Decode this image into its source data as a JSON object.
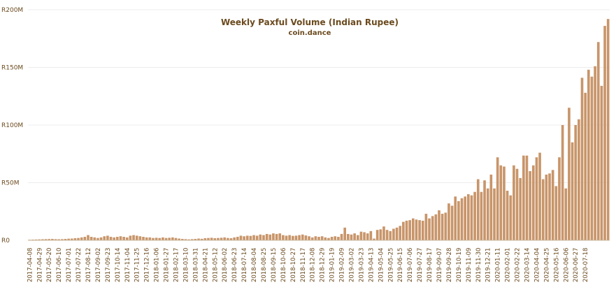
{
  "chart_data": {
    "type": "bar",
    "title": "Weekly Paxful Volume (Indian Rupee)",
    "subtitle": "coin.dance",
    "xlabel": "",
    "ylabel": "",
    "ylim": [
      0,
      200000000
    ],
    "y_ticks": [
      {
        "value": 0,
        "label": "R0"
      },
      {
        "value": 50000000,
        "label": "R50M"
      },
      {
        "value": 100000000,
        "label": "R100M"
      },
      {
        "value": 150000000,
        "label": "R150M"
      },
      {
        "value": 200000000,
        "label": "R200M"
      }
    ],
    "x_tick_labels": [
      "2017-04-08",
      "2017-04-29",
      "2017-05-20",
      "2017-06-10",
      "2017-07-01",
      "2017-07-22",
      "2017-08-12",
      "2017-09-02",
      "2017-09-23",
      "2017-10-14",
      "2017-11-04",
      "2017-11-25",
      "2017-12-16",
      "2018-01-06",
      "2018-01-27",
      "2018-02-17",
      "2018-03-10",
      "2018-03-31",
      "2018-04-21",
      "2018-05-12",
      "2018-06-02",
      "2018-06-23",
      "2018-07-14",
      "2018-08-04",
      "2018-08-25",
      "2018-09-15",
      "2018-10-06",
      "2018-10-27",
      "2018-11-17",
      "2018-12-08",
      "2018-12-29",
      "2019-01-19",
      "2019-02-09",
      "2019-03-02",
      "2019-03-23",
      "2019-04-13",
      "2019-05-04",
      "2019-05-25",
      "2019-06-15",
      "2019-07-06",
      "2019-07-27",
      "2019-08-17",
      "2019-09-07",
      "2019-09-28",
      "2019-10-19",
      "2019-11-09",
      "2019-11-30",
      "2019-12-21",
      "2020-01-11",
      "2020-02-01",
      "2020-02-22",
      "2020-03-14",
      "2020-04-04",
      "2020-04-25",
      "2020-05-16",
      "2020-06-06",
      "2020-06-27",
      "2020-07-18"
    ],
    "grid": true,
    "legend": "none",
    "bar_color": "#c8956a",
    "values_millions": [
      0.5,
      0.6,
      0.7,
      0.8,
      0.9,
      1.0,
      1.1,
      1.2,
      1.0,
      0.9,
      1.0,
      1.2,
      1.4,
      1.5,
      1.8,
      2.0,
      2.5,
      3.0,
      4.5,
      3.0,
      2.5,
      2.0,
      2.5,
      3.5,
      4.0,
      3.0,
      2.5,
      3.0,
      3.5,
      3.0,
      2.5,
      4.0,
      4.5,
      4.0,
      3.5,
      3.0,
      2.5,
      2.5,
      2.0,
      2.2,
      2.0,
      2.5,
      2.0,
      2.2,
      2.5,
      2.0,
      1.5,
      1.2,
      1.0,
      0.8,
      1.0,
      1.2,
      1.5,
      1.3,
      1.8,
      2.0,
      2.2,
      1.8,
      2.0,
      2.2,
      2.5,
      2.0,
      1.8,
      2.5,
      3.0,
      4.0,
      3.5,
      4.0,
      3.8,
      4.5,
      4.0,
      5.0,
      4.5,
      5.5,
      5.0,
      6.0,
      5.5,
      6.0,
      4.5,
      4.0,
      4.5,
      3.8,
      4.0,
      4.5,
      5.0,
      4.2,
      3.5,
      2.5,
      3.5,
      3.0,
      3.5,
      2.5,
      2.0,
      3.0,
      3.5,
      3.0,
      5.5,
      11.0,
      5.5,
      5.0,
      6.0,
      4.5,
      7.5,
      7.0,
      6.0,
      8.0,
      1.5,
      9.0,
      9.5,
      12.0,
      9.0,
      8.0,
      10.0,
      11.0,
      12.5,
      16.0,
      17.0,
      17.5,
      19.0,
      18.0,
      17.5,
      17.0,
      23.0,
      19.0,
      21.0,
      22.5,
      26.0,
      23.0,
      24.0,
      32.0,
      30.0,
      38.0,
      34.0,
      36.5,
      38.0,
      40.0,
      39.0,
      42.0,
      53.0,
      42.0,
      52.0,
      45.0,
      57.0,
      45.0,
      72.0,
      65.0,
      64.0,
      43.0,
      39.0,
      65.0,
      62.0,
      54.0,
      73.5,
      73.5,
      60.0,
      65.0,
      72.0,
      76.0,
      53.0,
      57.0,
      58.0,
      61.0,
      47.0,
      72.0,
      100.0,
      45.0,
      115.0,
      85.0,
      100.0,
      105.0,
      141.0,
      128.0,
      148.0,
      142.0,
      151.0,
      172.0,
      134.0,
      186.0,
      192.0
    ]
  }
}
